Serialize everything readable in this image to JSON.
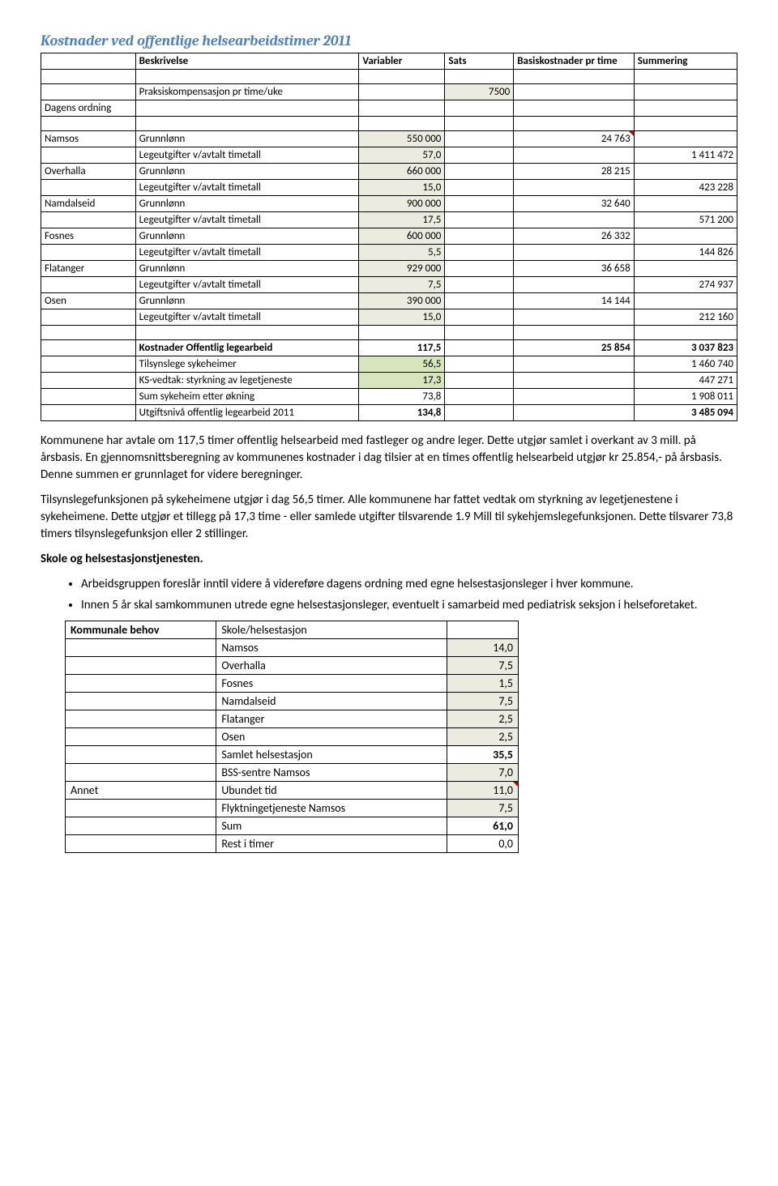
{
  "title": "Kostnader ved offentlige helsearbeidstimer 2011",
  "headers": {
    "beskrivelse": "Beskrivelse",
    "variabler": "Variabler",
    "sats": "Sats",
    "basis": "Basiskostnader pr time",
    "summering": "Summering"
  },
  "rows": {
    "dagens_ordning": "Dagens ordning",
    "praksis": "Praksiskompensasjon pr time/uke",
    "praksis_val": "7500",
    "namsos": "Namsos",
    "grunnlonn": "Grunnlønn",
    "namsos_gr": "550 000",
    "namsos_basis": "24 763",
    "lege": "Legeutgifter v/avtalt timetall",
    "namsos_lt": "57,0",
    "namsos_sum": "1 411 472",
    "overhalla": "Overhalla",
    "overhalla_gr": "660 000",
    "overhalla_basis": "28 215",
    "overhalla_lt": "15,0",
    "overhalla_sum": "423 228",
    "namdalseid": "Namdalseid",
    "namdalseid_gr": "900 000",
    "namdalseid_basis": "32 640",
    "namdalseid_lt": "17,5",
    "namdalseid_sum": "571 200",
    "fosnes": "Fosnes",
    "fosnes_gr": "600 000",
    "fosnes_basis": "26 332",
    "fosnes_lt": "5,5",
    "fosnes_sum": "144 826",
    "flatanger": "Flatanger",
    "flatanger_gr": "929 000",
    "flatanger_basis": "36 658",
    "flatanger_lt": "7,5",
    "flatanger_sum": "274 937",
    "osen": "Osen",
    "osen_gr": "390 000",
    "osen_basis": "14 144",
    "osen_lt": "15,0",
    "osen_sum": "212 160",
    "kost_off": "Kostnader Offentlig legearbeid",
    "kost_off_lt": "117,5",
    "kost_off_basis": "25 854",
    "kost_off_sum": "3 037 823",
    "tilsyn": "Tilsynslege sykeheimer",
    "tilsyn_lt": "56,5",
    "tilsyn_sum": "1 460 740",
    "ks": "KS-vedtak: styrkning av legetjeneste",
    "ks_lt": "17,3",
    "ks_sum": "447 271",
    "sumsyke": "Sum sykeheim etter økning",
    "sumsyke_lt": "73,8",
    "sumsyke_sum": "1 908 011",
    "utgift": "Utgiftsnivå offentlig legearbeid 2011",
    "utgift_lt": "134,8",
    "utgift_sum": "3 485 094"
  },
  "para1": "Kommunene har avtale om 117,5 timer offentlig helsearbeid med fastleger og andre leger. Dette utgjør samlet i overkant av 3 mill. på årsbasis. En gjennomsnittsberegning av kommunenes kostnader i dag tilsier at en times offentlig helsearbeid utgjør kr 25.854,- på årsbasis. Denne summen er grunnlaget for videre beregninger.",
  "para2": "Tilsynslegefunksjonen på sykeheimene utgjør i dag 56,5 timer. Alle kommunene har fattet vedtak om styrkning av legetjenestene i sykeheimene. Dette utgjør et tillegg på 17,3 time - eller samlede utgifter tilsvarende 1.9 Mill til sykehjemslegefunksjonen. Dette tilsvarer 73,8 timers tilsynslegefunksjon eller 2 stillinger.",
  "heading_skole": "Skole og helsestasjonstjenesten.",
  "bullet1": "Arbeidsgruppen foreslår inntil videre å videreføre dagens ordning med egne helsestasjonsleger i hver kommune.",
  "bullet2": "Innen 5 år skal samkommunen utrede egne helsestasjonsleger, eventuelt i samarbeid med pediatrisk seksjon i helseforetaket.",
  "small": {
    "kommunale": "Kommunale behov",
    "skole": "Skole/helsestasjon",
    "namsos": "Namsos",
    "namsos_v": "14,0",
    "overhalla": "Overhalla",
    "overhalla_v": "7,5",
    "fosnes": "Fosnes",
    "fosnes_v": "1,5",
    "namdalseid": "Namdalseid",
    "namdalseid_v": "7,5",
    "flatanger": "Flatanger",
    "flatanger_v": "2,5",
    "osen": "Osen",
    "osen_v": "2,5",
    "samlet": "Samlet helsestasjon",
    "samlet_v": "35,5",
    "bss": "BSS-sentre Namsos",
    "bss_v": "7,0",
    "annet": "Annet",
    "ubundet": "Ubundet tid",
    "ubundet_v": "11,0",
    "flykt": "Flyktningetjeneste Namsos",
    "flykt_v": "7,5",
    "sum": "Sum",
    "sum_v": "61,0",
    "rest": "Rest i timer",
    "rest_v": "0,0"
  }
}
